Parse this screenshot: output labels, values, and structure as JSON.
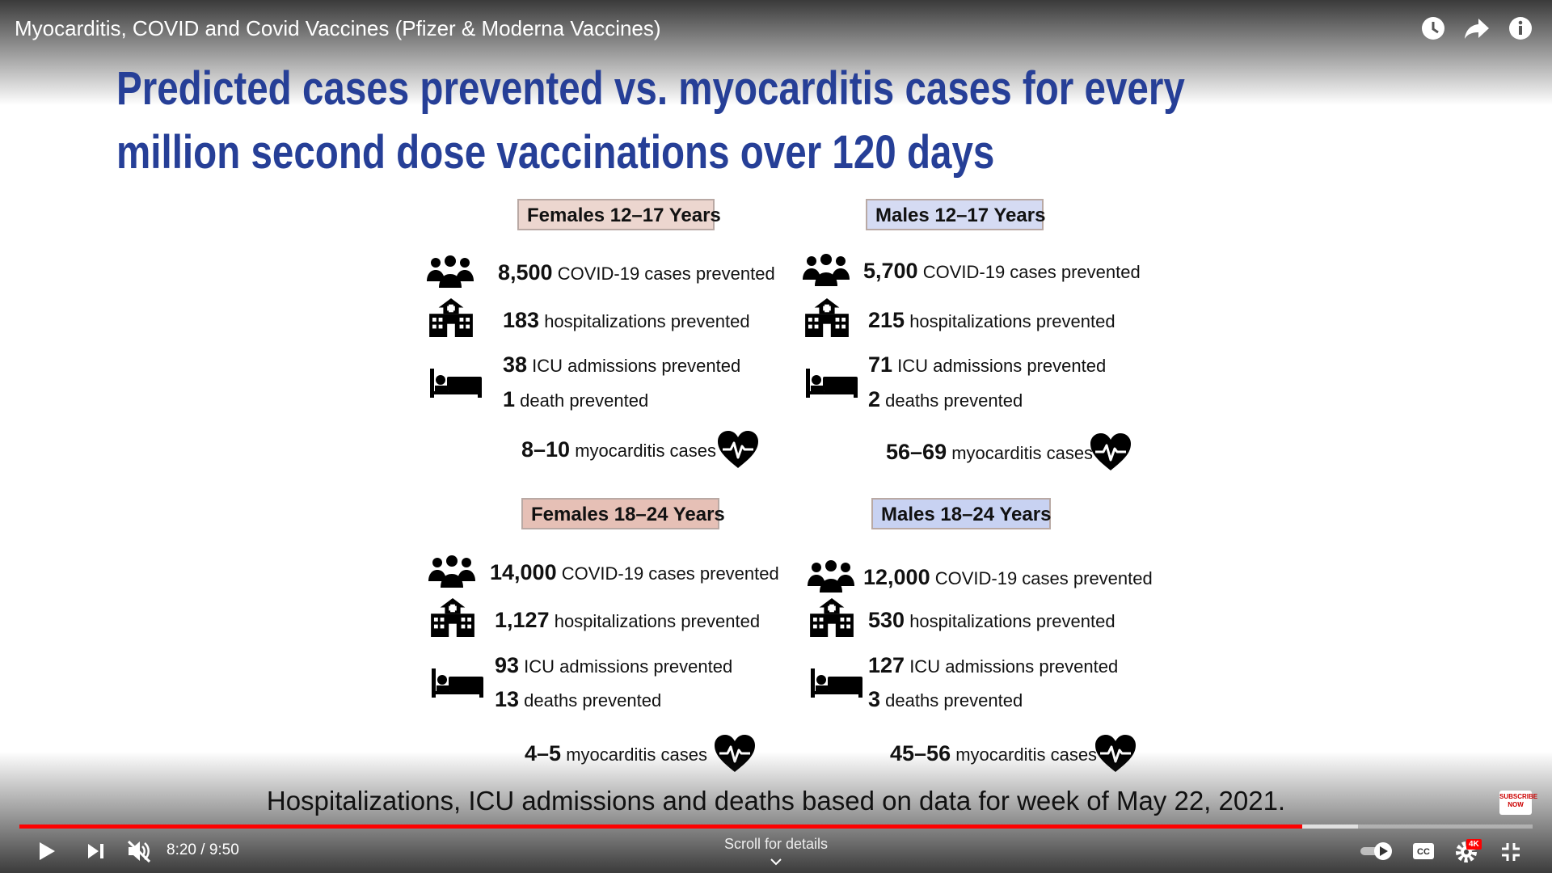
{
  "player": {
    "title": "Myocarditis, COVID and Covid Vaccines (Pfizer & Moderna Vaccines)",
    "time": "8:20 / 9:50",
    "scroll_hint": "Scroll for details",
    "quality_badge": "4K",
    "subscribe_badge": "SUBSCRIBE NOW"
  },
  "slide": {
    "title_lines": [
      "Predicted cases prevented vs. myocarditis cases for every",
      "million second dose vaccinations over 120 days"
    ],
    "panels": [
      {
        "heading": "Females 12–17 Years",
        "items": [
          {
            "value": "8,500",
            "label": "COVID-19 cases prevented"
          },
          {
            "value": "183",
            "label": "hospitalizations prevented"
          },
          {
            "value": "38",
            "label": "ICU admissions prevented"
          },
          {
            "value": "1",
            "label": "death prevented"
          }
        ],
        "myocarditis": {
          "value": "8–10",
          "label": "myocarditis cases"
        }
      },
      {
        "heading": "Males 12–17 Years",
        "items": [
          {
            "value": "5,700",
            "label": "COVID-19 cases prevented"
          },
          {
            "value": "215",
            "label": "hospitalizations prevented"
          },
          {
            "value": "71",
            "label": "ICU admissions prevented"
          },
          {
            "value": "2",
            "label": "deaths prevented"
          }
        ],
        "myocarditis": {
          "value": "56–69",
          "label": "myocarditis cases"
        }
      },
      {
        "heading": "Females 18–24 Years",
        "items": [
          {
            "value": "14,000",
            "label": "COVID-19 cases prevented"
          },
          {
            "value": "1,127",
            "label": "hospitalizations prevented"
          },
          {
            "value": "93",
            "label": "ICU admissions prevented"
          },
          {
            "value": "13",
            "label": "deaths prevented"
          }
        ],
        "myocarditis": {
          "value": "4–5",
          "label": "myocarditis cases"
        }
      },
      {
        "heading": "Males 18–24 Years",
        "items": [
          {
            "value": "12,000",
            "label": "COVID-19 cases prevented"
          },
          {
            "value": "530",
            "label": "hospitalizations prevented"
          },
          {
            "value": "127",
            "label": "ICU admissions prevented"
          },
          {
            "value": "3",
            "label": "deaths prevented"
          }
        ],
        "myocarditis": {
          "value": "45–56",
          "label": "myocarditis cases"
        }
      }
    ],
    "footnote": "Hospitalizations, ICU admissions and deaths based on data for week of May 22, 2021."
  }
}
